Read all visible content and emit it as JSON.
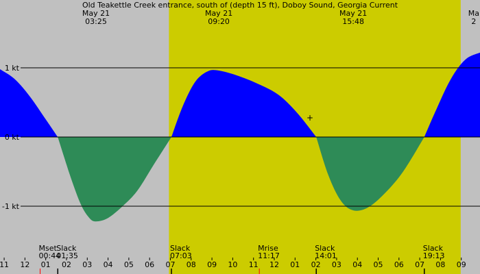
{
  "colors": {
    "background": "#c0c0c0",
    "daylight": "#cccc00",
    "flood": "#0000ff",
    "ebb": "#2e8b57",
    "gridline": "#000000",
    "moonset_tick": "#ff0000"
  },
  "chart_data": {
    "type": "area",
    "title": "Old Teakettle Creek entrance, south of (depth 15 ft), Doboy Sound, Georgia Current",
    "ylabel": "",
    "xlabel": "",
    "y_unit": "kt",
    "x_unit": "hour of day",
    "xlim": [
      10.8,
      33.9
    ],
    "ylim": [
      -1.95,
      1.95
    ],
    "grid": "horizontal at -1, 0, 1 kt",
    "y_ticks": [
      {
        "value": 1,
        "label": "1 kt"
      },
      {
        "value": 0,
        "label": "0 kt"
      },
      {
        "value": -1,
        "label": "-1 kt"
      }
    ],
    "x_ticks": [
      {
        "x": 11,
        "label": "11"
      },
      {
        "x": 12,
        "label": "12"
      },
      {
        "x": 13,
        "label": "01"
      },
      {
        "x": 14,
        "label": "02"
      },
      {
        "x": 15,
        "label": "03"
      },
      {
        "x": 16,
        "label": "04"
      },
      {
        "x": 17,
        "label": "05"
      },
      {
        "x": 18,
        "label": "06"
      },
      {
        "x": 19,
        "label": "07"
      },
      {
        "x": 20,
        "label": "08"
      },
      {
        "x": 21,
        "label": "09"
      },
      {
        "x": 22,
        "label": "10"
      },
      {
        "x": 23,
        "label": "11"
      },
      {
        "x": 24,
        "label": "12"
      },
      {
        "x": 25,
        "label": "01"
      },
      {
        "x": 26,
        "label": "02"
      },
      {
        "x": 27,
        "label": "03"
      },
      {
        "x": 28,
        "label": "04"
      },
      {
        "x": 29,
        "label": "05"
      },
      {
        "x": 30,
        "label": "06"
      },
      {
        "x": 31,
        "label": "07"
      },
      {
        "x": 32,
        "label": "08"
      },
      {
        "x": 33,
        "label": "09"
      }
    ],
    "daylight": [
      {
        "start": 18.93,
        "end": 32.97
      }
    ],
    "top_labels": [
      {
        "x": 15.42,
        "date": "May 21",
        "time": "03:25"
      },
      {
        "x": 21.33,
        "date": "May 21",
        "time": "09:20"
      },
      {
        "x": 27.8,
        "date": "May 21",
        "time": "15:48"
      },
      {
        "x": 33.6,
        "date": "Ma",
        "time": "2"
      }
    ],
    "events": [
      {
        "x": 12.73,
        "name": "Mset",
        "time": "00:44"
      },
      {
        "x": 13.58,
        "name": "Slack",
        "time": "01:35"
      },
      {
        "x": 19.05,
        "name": "Slack",
        "time": "07:03"
      },
      {
        "x": 23.28,
        "name": "Mrise",
        "time": "11:17"
      },
      {
        "x": 26.02,
        "name": "Slack",
        "time": "14:01"
      },
      {
        "x": 31.22,
        "name": "Slack",
        "time": "19:13"
      }
    ],
    "series": [
      {
        "type": "flood",
        "points": [
          [
            10.8,
            0.98
          ],
          [
            11.5,
            0.84
          ],
          [
            12.2,
            0.6
          ],
          [
            12.9,
            0.3
          ],
          [
            13.58,
            0
          ]
        ]
      },
      {
        "type": "ebb",
        "points": [
          [
            13.58,
            0
          ],
          [
            14.2,
            -0.58
          ],
          [
            14.7,
            -0.98
          ],
          [
            15.1,
            -1.17
          ],
          [
            15.42,
            -1.22
          ],
          [
            16.0,
            -1.17
          ],
          [
            16.7,
            -1.0
          ],
          [
            17.4,
            -0.78
          ],
          [
            18.2,
            -0.4
          ],
          [
            19.05,
            0
          ]
        ]
      },
      {
        "type": "flood",
        "points": [
          [
            19.05,
            0
          ],
          [
            19.6,
            0.45
          ],
          [
            20.2,
            0.8
          ],
          [
            20.8,
            0.95
          ],
          [
            21.33,
            0.96
          ],
          [
            22.2,
            0.89
          ],
          [
            23.2,
            0.77
          ],
          [
            24.2,
            0.61
          ],
          [
            25.1,
            0.35
          ],
          [
            26.02,
            0
          ]
        ]
      },
      {
        "type": "ebb",
        "points": [
          [
            26.02,
            0
          ],
          [
            26.6,
            -0.55
          ],
          [
            27.2,
            -0.92
          ],
          [
            27.8,
            -1.06
          ],
          [
            28.5,
            -1.02
          ],
          [
            29.3,
            -0.82
          ],
          [
            30.2,
            -0.5
          ],
          [
            31.22,
            0
          ]
        ]
      },
      {
        "type": "flood",
        "points": [
          [
            31.22,
            0
          ],
          [
            31.8,
            0.4
          ],
          [
            32.5,
            0.84
          ],
          [
            33.2,
            1.12
          ],
          [
            33.9,
            1.22
          ]
        ]
      }
    ]
  }
}
